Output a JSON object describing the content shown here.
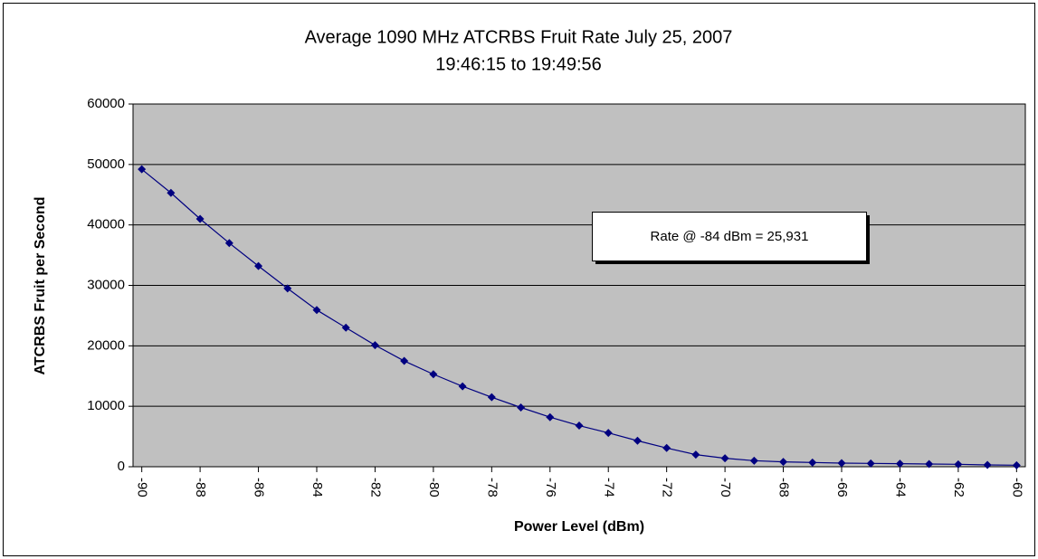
{
  "chart_data": {
    "type": "line",
    "title": "Average 1090 MHz ATCRBS Fruit Rate July 25, 2007",
    "subtitle": "19:46:15 to 19:49:56",
    "x_label": "Power Level (dBm)",
    "y_label": "ATCRBS Fruit per Second",
    "annotation": "Rate @ -84 dBm = 25,931",
    "x": [
      -90,
      -89,
      -88,
      -87,
      -86,
      -85,
      -84,
      -83,
      -82,
      -81,
      -80,
      -79,
      -78,
      -77,
      -76,
      -75,
      -74,
      -73,
      -72,
      -71,
      -70,
      -69,
      -68,
      -67,
      -66,
      -65,
      -64,
      -63,
      -62,
      -61,
      -60
    ],
    "series": [
      {
        "name": "Fruit Rate",
        "color": "#000080",
        "values": [
          49200,
          45300,
          41000,
          37000,
          33200,
          29500,
          25931,
          23000,
          20100,
          17500,
          15300,
          13300,
          11500,
          9800,
          8200,
          6800,
          5600,
          4300,
          3100,
          2000,
          1400,
          1000,
          800,
          700,
          600,
          550,
          500,
          450,
          400,
          300,
          250
        ]
      }
    ],
    "xlim": [
      -90.3,
      -59.7
    ],
    "xticks": [
      -90,
      -88,
      -86,
      -84,
      -82,
      -80,
      -78,
      -76,
      -74,
      -72,
      -70,
      -68,
      -66,
      -64,
      -62,
      -60
    ],
    "ylim": [
      0,
      60000
    ],
    "yticks": [
      0,
      10000,
      20000,
      30000,
      40000,
      50000,
      60000
    ],
    "grid": true,
    "plot_background": "#c0c0c0"
  }
}
